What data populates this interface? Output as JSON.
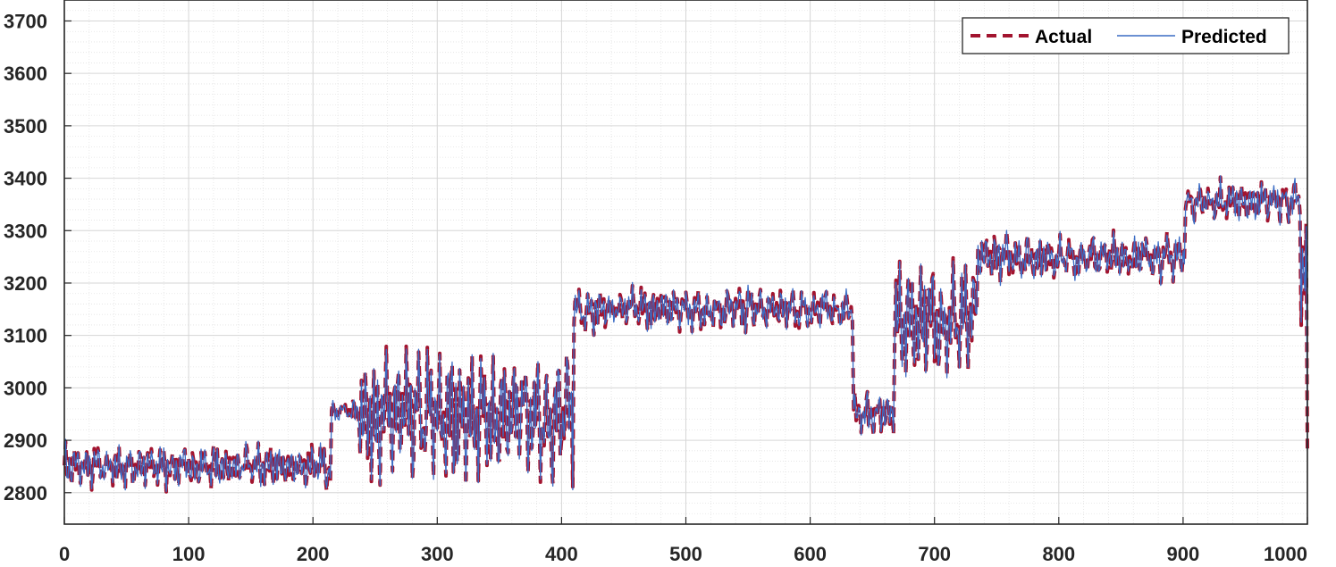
{
  "chart_data": {
    "type": "line",
    "title": "",
    "xlabel": "",
    "ylabel": "",
    "xlim": [
      0,
      1000
    ],
    "ylim": [
      2740,
      3740
    ],
    "x_ticks": [
      0,
      100,
      200,
      300,
      400,
      500,
      600,
      700,
      800,
      900,
      1000
    ],
    "x_tick_labels": [
      "0",
      "100",
      "200",
      "300",
      "400",
      "500",
      "600",
      "700",
      "800",
      "900",
      "1000"
    ],
    "y_ticks": [
      2800,
      2900,
      3000,
      3100,
      3200,
      3300,
      3400,
      3500,
      3600,
      3700
    ],
    "y_tick_labels": [
      "2800",
      "2900",
      "3000",
      "3100",
      "3200",
      "3300",
      "3400",
      "3500",
      "3600",
      "3700"
    ],
    "grid": true,
    "minor_grid": true,
    "legend_position": "top-right",
    "series": [
      {
        "name": "Actual",
        "color": "#a2142f",
        "style": "dashed",
        "x_step": 1,
        "segments": [
          {
            "x": [
              0,
              215
            ],
            "center": 2850,
            "spread": 95
          },
          {
            "x": [
              215,
              238
            ],
            "center": 2955,
            "spread": 45
          },
          {
            "x": [
              238,
              410
            ],
            "center": 2945,
            "spread": 280
          },
          {
            "x": [
              410,
              635
            ],
            "center": 3150,
            "spread": 95
          },
          {
            "x": [
              635,
              668
            ],
            "center": 2950,
            "spread": 95
          },
          {
            "x": [
              668,
              735
            ],
            "center": 3130,
            "spread": 250
          },
          {
            "x": [
              735,
              902
            ],
            "center": 3250,
            "spread": 95
          },
          {
            "x": [
              902,
              995
            ],
            "center": 3355,
            "spread": 90
          },
          {
            "x": [
              995,
              1000
            ],
            "center": 3200,
            "spread": 320
          }
        ]
      },
      {
        "name": "Predicted",
        "color": "#3a6bc4",
        "style": "solid"
      }
    ]
  },
  "legend": {
    "actual_label": "Actual",
    "predicted_label": "Predicted"
  }
}
